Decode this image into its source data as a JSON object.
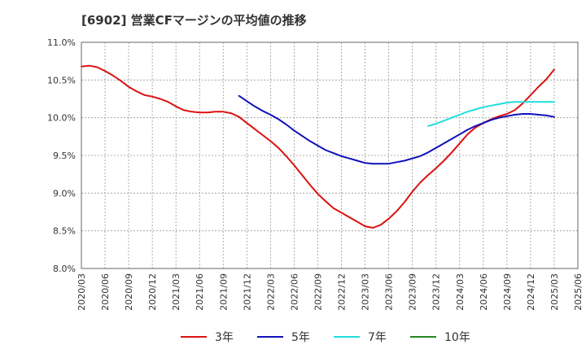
{
  "chart_data": {
    "type": "line",
    "title": "[6902]  営業CFマージンの平均値の推移",
    "xlabel": "",
    "ylabel": "",
    "ylim": [
      8.0,
      11.0
    ],
    "y_ticks": [
      "8.0%",
      "8.5%",
      "9.0%",
      "9.5%",
      "10.0%",
      "10.5%",
      "11.0%"
    ],
    "y_tick_values": [
      8.0,
      8.5,
      9.0,
      9.5,
      10.0,
      10.5,
      11.0
    ],
    "x_ticks": [
      "2020/03",
      "2020/06",
      "2020/09",
      "2020/12",
      "2021/03",
      "2021/06",
      "2021/09",
      "2021/12",
      "2022/03",
      "2022/06",
      "2022/09",
      "2022/12",
      "2023/03",
      "2023/06",
      "2023/09",
      "2023/12",
      "2024/03",
      "2024/06",
      "2024/09",
      "2024/12",
      "2025/03",
      "2025/06"
    ],
    "grid": true,
    "legend_position": "bottom",
    "series": [
      {
        "name": "3年",
        "color": "#dd1111",
        "x": [
          "2020/03",
          "2020/04",
          "2020/05",
          "2020/06",
          "2020/07",
          "2020/08",
          "2020/09",
          "2020/10",
          "2020/11",
          "2020/12",
          "2021/01",
          "2021/02",
          "2021/03",
          "2021/04",
          "2021/05",
          "2021/06",
          "2021/07",
          "2021/08",
          "2021/09",
          "2021/10",
          "2021/11",
          "2021/12",
          "2022/01",
          "2022/02",
          "2022/03",
          "2022/04",
          "2022/05",
          "2022/06",
          "2022/07",
          "2022/08",
          "2022/09",
          "2022/10",
          "2022/11",
          "2022/12",
          "2023/01",
          "2023/02",
          "2023/03",
          "2023/04",
          "2023/05",
          "2023/06",
          "2023/07",
          "2023/08",
          "2023/09",
          "2023/10",
          "2023/11",
          "2023/12",
          "2024/01",
          "2024/02",
          "2024/03",
          "2024/04",
          "2024/05",
          "2024/06",
          "2024/07",
          "2024/08",
          "2024/09",
          "2024/10",
          "2024/11",
          "2024/12",
          "2025/01",
          "2025/02",
          "2025/03"
        ],
        "values": [
          10.68,
          10.69,
          10.67,
          10.62,
          10.56,
          10.49,
          10.41,
          10.35,
          10.3,
          10.28,
          10.25,
          10.21,
          10.15,
          10.1,
          10.08,
          10.07,
          10.07,
          10.08,
          10.08,
          10.06,
          10.01,
          9.93,
          9.85,
          9.77,
          9.69,
          9.6,
          9.49,
          9.37,
          9.24,
          9.11,
          8.99,
          8.89,
          8.8,
          8.74,
          8.68,
          8.62,
          8.56,
          8.54,
          8.58,
          8.66,
          8.76,
          8.88,
          9.02,
          9.14,
          9.24,
          9.33,
          9.43,
          9.54,
          9.66,
          9.78,
          9.87,
          9.93,
          9.98,
          10.02,
          10.05,
          10.1,
          10.19,
          10.3,
          10.41,
          10.51,
          10.64
        ]
      },
      {
        "name": "5年",
        "color": "#1111bb",
        "x": [
          "2021/11",
          "2021/12",
          "2022/01",
          "2022/02",
          "2022/03",
          "2022/04",
          "2022/05",
          "2022/06",
          "2022/07",
          "2022/08",
          "2022/09",
          "2022/10",
          "2022/11",
          "2022/12",
          "2023/01",
          "2023/02",
          "2023/03",
          "2023/04",
          "2023/05",
          "2023/06",
          "2023/07",
          "2023/08",
          "2023/09",
          "2023/10",
          "2023/11",
          "2023/12",
          "2024/01",
          "2024/02",
          "2024/03",
          "2024/04",
          "2024/05",
          "2024/06",
          "2024/07",
          "2024/08",
          "2024/09",
          "2024/10",
          "2024/11",
          "2024/12",
          "2025/01",
          "2025/02",
          "2025/03"
        ],
        "values": [
          10.29,
          10.22,
          10.15,
          10.09,
          10.04,
          9.98,
          9.91,
          9.83,
          9.76,
          9.69,
          9.63,
          9.57,
          9.53,
          9.49,
          9.46,
          9.43,
          9.4,
          9.39,
          9.39,
          9.39,
          9.41,
          9.43,
          9.46,
          9.49,
          9.54,
          9.6,
          9.66,
          9.72,
          9.78,
          9.84,
          9.89,
          9.93,
          9.97,
          10.0,
          10.02,
          10.04,
          10.05,
          10.05,
          10.04,
          10.03,
          10.01
        ]
      },
      {
        "name": "7年",
        "color": "#22dddd",
        "x": [
          "2023/11",
          "2023/12",
          "2024/01",
          "2024/02",
          "2024/03",
          "2024/04",
          "2024/05",
          "2024/06",
          "2024/07",
          "2024/08",
          "2024/09",
          "2024/10",
          "2024/11",
          "2024/12",
          "2025/01",
          "2025/02",
          "2025/03"
        ],
        "values": [
          9.89,
          9.92,
          9.96,
          10.0,
          10.04,
          10.08,
          10.11,
          10.14,
          10.16,
          10.18,
          10.2,
          10.21,
          10.21,
          10.21,
          10.21,
          10.21,
          10.21
        ]
      },
      {
        "name": "10年",
        "color": "#228822",
        "x": [],
        "values": []
      }
    ]
  }
}
